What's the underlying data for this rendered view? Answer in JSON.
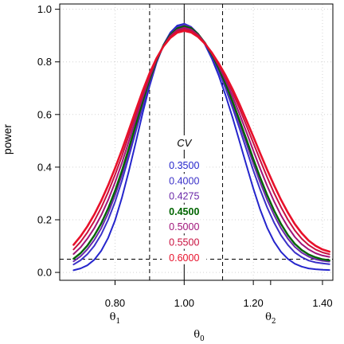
{
  "chart_data": {
    "type": "line",
    "xlabel": "θ",
    "xlabel_subscript": "0",
    "ylabel": "power",
    "xlim": [
      0.64,
      1.43
    ],
    "ylim": [
      -0.03,
      1.02
    ],
    "x_ticks": [
      {
        "value": 0.8,
        "label": "0.80"
      },
      {
        "value": 1.0,
        "label": "1.00"
      },
      {
        "value": 1.2,
        "label": "1.20"
      },
      {
        "value": 1.4,
        "label": "1.40"
      }
    ],
    "y_ticks": [
      {
        "value": 0.0,
        "label": "0.0"
      },
      {
        "value": 0.2,
        "label": "0.2"
      },
      {
        "value": 0.4,
        "label": "0.4"
      },
      {
        "value": 0.6,
        "label": "0.6"
      },
      {
        "value": 0.8,
        "label": "0.8"
      },
      {
        "value": 1.0,
        "label": "1.0"
      }
    ],
    "theta_markers": [
      {
        "value": 0.8,
        "symbol": "θ",
        "subscript": "1"
      },
      {
        "value": 1.25,
        "symbol": "θ",
        "subscript": "2"
      }
    ],
    "grid": true,
    "reference_lines": {
      "vertical_dashed": [
        0.9,
        1.1111
      ],
      "vertical_solid": [
        1.0
      ],
      "horizontal_dashed": [
        0.05
      ]
    },
    "legend": {
      "title": "CV",
      "placement": "center",
      "highlight": "0.4500"
    },
    "series": [
      {
        "name": "0.3500",
        "color": "#2525cc",
        "line_width": 2.0,
        "x": [
          0.68,
          0.7,
          0.72,
          0.74,
          0.76,
          0.78,
          0.8,
          0.82,
          0.84,
          0.86,
          0.88,
          0.9,
          0.92,
          0.94,
          0.96,
          0.98,
          1.0,
          1.02,
          1.04,
          1.06,
          1.08,
          1.1,
          1.12,
          1.14,
          1.16,
          1.18,
          1.2,
          1.22,
          1.24,
          1.26,
          1.28,
          1.3,
          1.32,
          1.34,
          1.36,
          1.38,
          1.4,
          1.42
        ],
        "y": [
          0.008,
          0.015,
          0.027,
          0.048,
          0.082,
          0.131,
          0.198,
          0.285,
          0.385,
          0.494,
          0.606,
          0.709,
          0.797,
          0.865,
          0.911,
          0.938,
          0.945,
          0.933,
          0.906,
          0.866,
          0.813,
          0.748,
          0.672,
          0.588,
          0.498,
          0.407,
          0.319,
          0.238,
          0.17,
          0.117,
          0.078,
          0.051,
          0.033,
          0.022,
          0.015,
          0.012,
          0.01,
          0.009
        ]
      },
      {
        "name": "0.4000",
        "color": "#3a30c8",
        "line_width": 2.0,
        "x": [
          0.68,
          0.7,
          0.72,
          0.74,
          0.76,
          0.78,
          0.8,
          0.82,
          0.84,
          0.86,
          0.88,
          0.9,
          0.92,
          0.94,
          0.96,
          0.98,
          1.0,
          1.02,
          1.04,
          1.06,
          1.08,
          1.1,
          1.12,
          1.14,
          1.16,
          1.18,
          1.2,
          1.22,
          1.24,
          1.26,
          1.28,
          1.3,
          1.32,
          1.34,
          1.36,
          1.38,
          1.4,
          1.42
        ],
        "y": [
          0.03,
          0.046,
          0.069,
          0.101,
          0.144,
          0.2,
          0.268,
          0.349,
          0.44,
          0.535,
          0.63,
          0.72,
          0.799,
          0.862,
          0.906,
          0.933,
          0.943,
          0.933,
          0.907,
          0.87,
          0.822,
          0.765,
          0.698,
          0.625,
          0.547,
          0.467,
          0.388,
          0.314,
          0.247,
          0.189,
          0.141,
          0.104,
          0.076,
          0.058,
          0.045,
          0.038,
          0.034,
          0.031
        ]
      },
      {
        "name": "0.4275",
        "color": "#6a28a8",
        "line_width": 2.0,
        "x": [
          0.68,
          0.7,
          0.72,
          0.74,
          0.76,
          0.78,
          0.8,
          0.82,
          0.84,
          0.86,
          0.88,
          0.9,
          0.92,
          0.94,
          0.96,
          0.98,
          1.0,
          1.02,
          1.04,
          1.06,
          1.08,
          1.1,
          1.12,
          1.14,
          1.16,
          1.18,
          1.2,
          1.22,
          1.24,
          1.26,
          1.28,
          1.3,
          1.32,
          1.34,
          1.36,
          1.38,
          1.4,
          1.42
        ],
        "y": [
          0.042,
          0.061,
          0.088,
          0.123,
          0.168,
          0.225,
          0.293,
          0.372,
          0.459,
          0.55,
          0.641,
          0.727,
          0.803,
          0.863,
          0.904,
          0.929,
          0.938,
          0.93,
          0.906,
          0.871,
          0.826,
          0.772,
          0.709,
          0.64,
          0.566,
          0.49,
          0.414,
          0.342,
          0.276,
          0.218,
          0.168,
          0.128,
          0.097,
          0.075,
          0.06,
          0.05,
          0.044,
          0.041
        ]
      },
      {
        "name": "0.4500",
        "color": "#006400",
        "line_width": 2.4,
        "x": [
          0.68,
          0.7,
          0.72,
          0.74,
          0.76,
          0.78,
          0.8,
          0.82,
          0.84,
          0.86,
          0.88,
          0.9,
          0.92,
          0.94,
          0.96,
          0.98,
          1.0,
          1.02,
          1.04,
          1.06,
          1.08,
          1.1,
          1.12,
          1.14,
          1.16,
          1.18,
          1.2,
          1.22,
          1.24,
          1.26,
          1.28,
          1.3,
          1.32,
          1.34,
          1.36,
          1.38,
          1.4,
          1.42
        ],
        "y": [
          0.052,
          0.073,
          0.102,
          0.14,
          0.186,
          0.243,
          0.31,
          0.387,
          0.472,
          0.561,
          0.65,
          0.733,
          0.806,
          0.863,
          0.903,
          0.927,
          0.935,
          0.928,
          0.906,
          0.872,
          0.828,
          0.776,
          0.716,
          0.649,
          0.578,
          0.505,
          0.431,
          0.36,
          0.294,
          0.235,
          0.184,
          0.142,
          0.109,
          0.085,
          0.068,
          0.057,
          0.05,
          0.046
        ]
      },
      {
        "name": "0.5000",
        "color": "#a0147a",
        "line_width": 2.0,
        "x": [
          0.68,
          0.7,
          0.72,
          0.74,
          0.76,
          0.78,
          0.8,
          0.82,
          0.84,
          0.86,
          0.88,
          0.9,
          0.92,
          0.94,
          0.96,
          0.98,
          1.0,
          1.02,
          1.04,
          1.06,
          1.08,
          1.1,
          1.12,
          1.14,
          1.16,
          1.18,
          1.2,
          1.22,
          1.24,
          1.26,
          1.28,
          1.3,
          1.32,
          1.34,
          1.36,
          1.38,
          1.4,
          1.42
        ],
        "y": [
          0.07,
          0.095,
          0.128,
          0.168,
          0.217,
          0.275,
          0.342,
          0.417,
          0.498,
          0.582,
          0.665,
          0.742,
          0.809,
          0.861,
          0.899,
          0.922,
          0.93,
          0.923,
          0.903,
          0.872,
          0.832,
          0.784,
          0.729,
          0.668,
          0.602,
          0.533,
          0.463,
          0.394,
          0.329,
          0.27,
          0.217,
          0.172,
          0.135,
          0.107,
          0.087,
          0.073,
          0.064,
          0.059
        ]
      },
      {
        "name": "0.5500",
        "color": "#c8103e",
        "line_width": 2.0,
        "x": [
          0.68,
          0.7,
          0.72,
          0.74,
          0.76,
          0.78,
          0.8,
          0.82,
          0.84,
          0.86,
          0.88,
          0.9,
          0.92,
          0.94,
          0.96,
          0.98,
          1.0,
          1.02,
          1.04,
          1.06,
          1.08,
          1.1,
          1.12,
          1.14,
          1.16,
          1.18,
          1.2,
          1.22,
          1.24,
          1.26,
          1.28,
          1.3,
          1.32,
          1.34,
          1.36,
          1.38,
          1.4,
          1.42
        ],
        "y": [
          0.087,
          0.116,
          0.152,
          0.195,
          0.246,
          0.305,
          0.371,
          0.443,
          0.52,
          0.6,
          0.678,
          0.75,
          0.811,
          0.86,
          0.895,
          0.917,
          0.924,
          0.918,
          0.899,
          0.871,
          0.834,
          0.79,
          0.74,
          0.684,
          0.623,
          0.558,
          0.492,
          0.426,
          0.362,
          0.302,
          0.248,
          0.2,
          0.16,
          0.128,
          0.104,
          0.087,
          0.076,
          0.069
        ]
      },
      {
        "name": "0.6000",
        "color": "#e8102a",
        "line_width": 2.6,
        "x": [
          0.68,
          0.7,
          0.72,
          0.74,
          0.76,
          0.78,
          0.8,
          0.82,
          0.84,
          0.86,
          0.88,
          0.9,
          0.92,
          0.94,
          0.96,
          0.98,
          1.0,
          1.02,
          1.04,
          1.06,
          1.08,
          1.1,
          1.12,
          1.14,
          1.16,
          1.18,
          1.2,
          1.22,
          1.24,
          1.26,
          1.28,
          1.3,
          1.32,
          1.34,
          1.36,
          1.38,
          1.4,
          1.42
        ],
        "y": [
          0.105,
          0.137,
          0.175,
          0.22,
          0.272,
          0.331,
          0.396,
          0.466,
          0.54,
          0.616,
          0.69,
          0.757,
          0.814,
          0.859,
          0.891,
          0.911,
          0.918,
          0.912,
          0.895,
          0.869,
          0.835,
          0.794,
          0.748,
          0.696,
          0.639,
          0.578,
          0.516,
          0.452,
          0.39,
          0.331,
          0.276,
          0.227,
          0.184,
          0.149,
          0.121,
          0.101,
          0.087,
          0.079
        ]
      }
    ]
  }
}
